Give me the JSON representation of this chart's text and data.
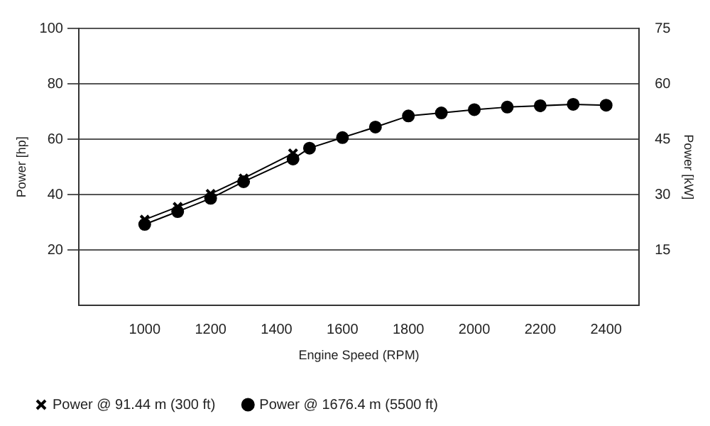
{
  "chart_data": {
    "type": "line",
    "xlabel": "Engine Speed (RPM)",
    "ylabel": "Power [hp]",
    "y2label": "Power [kW]",
    "xlim": [
      800,
      2500
    ],
    "xticks": [
      1000,
      1200,
      1400,
      1600,
      1800,
      2000,
      2200,
      2400
    ],
    "ylim": [
      0,
      100
    ],
    "yticks": [
      20,
      40,
      60,
      80,
      100
    ],
    "y2lim": [
      0,
      75
    ],
    "y2ticks": [
      15,
      30,
      45,
      60,
      75
    ],
    "grid": "y",
    "legend": "bottom left",
    "line_style": "solid",
    "series": [
      {
        "name": "Power @ 91.44 m (300 ft)",
        "color": "#000000",
        "marker": "cross",
        "x": [
          1000,
          1100,
          1200,
          1300,
          1450
        ],
        "values": [
          31.0,
          35.6,
          40.3,
          45.9,
          54.9
        ]
      },
      {
        "name": "Power @ 1676.4 m (5500 ft)",
        "color": "#000000",
        "marker": "circle",
        "x": [
          1000,
          1100,
          1200,
          1300,
          1450,
          1500,
          1600,
          1700,
          1800,
          1900,
          2000,
          2100,
          2200,
          2300,
          2400
        ],
        "values": [
          29.3,
          33.9,
          38.7,
          44.7,
          52.9,
          56.8,
          60.6,
          64.4,
          68.4,
          69.5,
          70.7,
          71.6,
          72.1,
          72.6,
          72.3
        ]
      }
    ]
  }
}
